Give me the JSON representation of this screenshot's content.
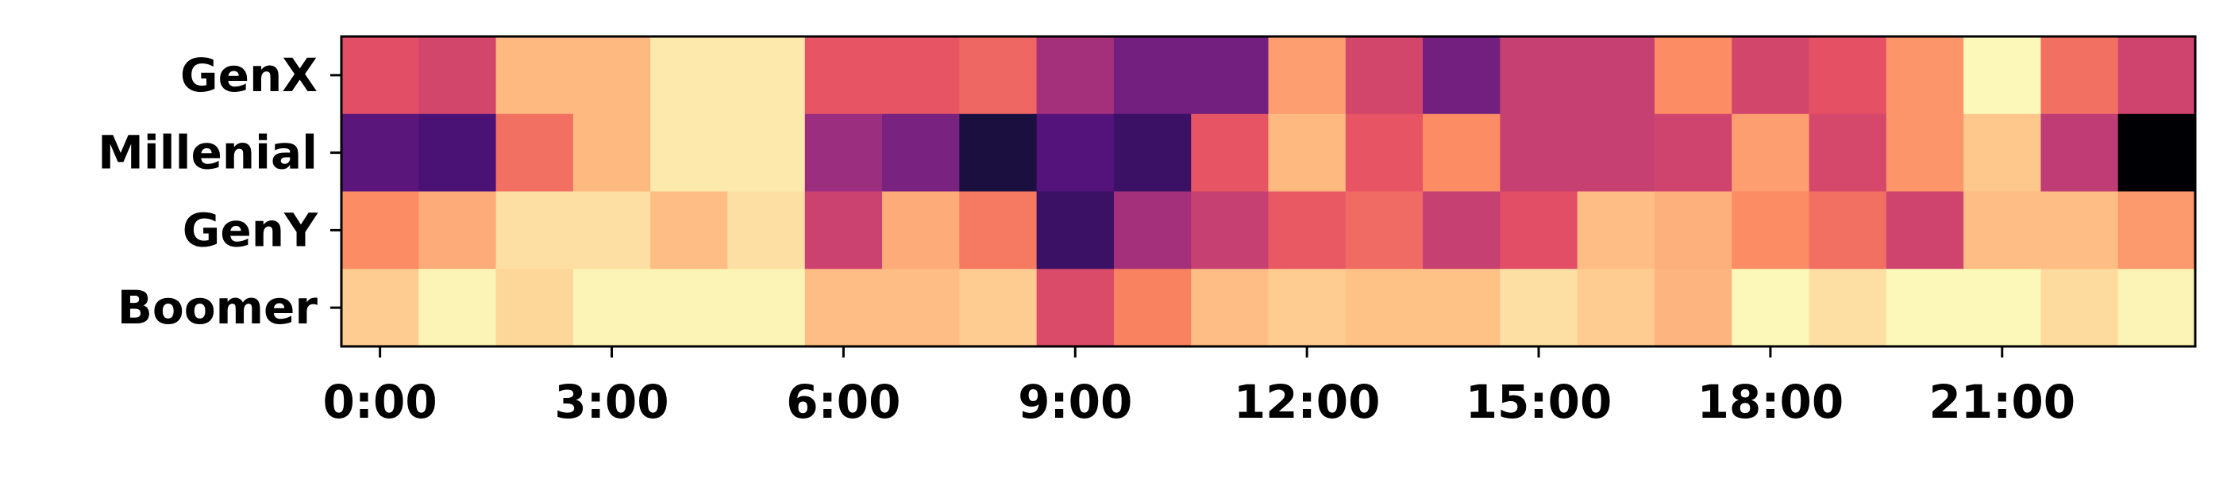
{
  "chart_data": {
    "type": "heatmap",
    "title": "",
    "xlabel": "",
    "ylabel": "",
    "colormap": "magma",
    "value_range": [
      0,
      1
    ],
    "rows": [
      "GenX",
      "Millenial",
      "GenY",
      "Boomer"
    ],
    "columns": [
      "0:00",
      "1:00",
      "2:00",
      "3:00",
      "4:00",
      "5:00",
      "6:00",
      "7:00",
      "8:00",
      "9:00",
      "10:00",
      "11:00",
      "12:00",
      "13:00",
      "14:00",
      "15:00",
      "16:00",
      "17:00",
      "18:00",
      "19:00",
      "20:00",
      "21:00",
      "22:00",
      "23:00"
    ],
    "x_ticks": [
      "0:00",
      "3:00",
      "6:00",
      "9:00",
      "12:00",
      "15:00",
      "18:00",
      "21:00"
    ],
    "x_tick_hours": [
      0,
      3,
      6,
      9,
      12,
      15,
      18,
      21
    ],
    "values": [
      [
        0.62,
        0.58,
        0.86,
        0.86,
        0.96,
        0.96,
        0.64,
        0.64,
        0.68,
        0.46,
        0.34,
        0.34,
        0.8,
        0.58,
        0.34,
        0.55,
        0.55,
        0.76,
        0.58,
        0.63,
        0.78,
        0.99,
        0.7,
        0.57
      ],
      [
        0.28,
        0.24,
        0.7,
        0.86,
        0.96,
        0.96,
        0.44,
        0.36,
        0.12,
        0.26,
        0.2,
        0.64,
        0.86,
        0.64,
        0.76,
        0.55,
        0.55,
        0.57,
        0.8,
        0.59,
        0.78,
        0.89,
        0.53,
        0.0
      ],
      [
        0.76,
        0.83,
        0.94,
        0.94,
        0.87,
        0.94,
        0.56,
        0.83,
        0.72,
        0.2,
        0.46,
        0.55,
        0.65,
        0.69,
        0.55,
        0.62,
        0.87,
        0.84,
        0.76,
        0.7,
        0.57,
        0.87,
        0.87,
        0.79
      ],
      [
        0.9,
        0.98,
        0.92,
        0.98,
        0.98,
        0.98,
        0.87,
        0.87,
        0.9,
        0.6,
        0.74,
        0.87,
        0.9,
        0.88,
        0.88,
        0.94,
        0.9,
        0.85,
        0.99,
        0.94,
        0.99,
        0.99,
        0.93,
        0.98
      ]
    ]
  }
}
